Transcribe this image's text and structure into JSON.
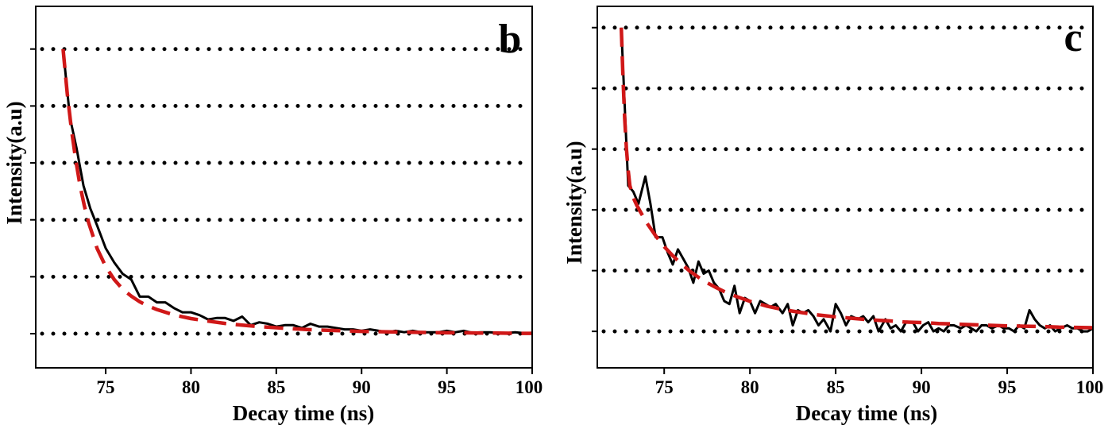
{
  "colors": {
    "data_line": "#000000",
    "fit_line": "#d01818",
    "grid": "#000000",
    "axis": "#000000"
  },
  "chart_data": [
    {
      "type": "line",
      "panel_label": "b",
      "xlabel": "Decay time (ns)",
      "ylabel": "Intensity(a.u)",
      "xlim": [
        70.9,
        100
      ],
      "ylim": [
        -0.12,
        1.15
      ],
      "x_ticks": [
        75,
        80,
        85,
        90,
        95,
        100
      ],
      "x_tick_labels": [
        "75",
        "80",
        "85",
        "90",
        "95",
        "100"
      ],
      "y_ticks": [
        0,
        0.2,
        0.4,
        0.6,
        0.8,
        1.0
      ],
      "y_tick_labels": [],
      "grid": "horizontal dotted",
      "series": [
        {
          "role": "measured",
          "style": "solid black",
          "x": [
            72.5,
            72.9,
            73.3,
            73.7,
            74.1,
            74.5,
            75.0,
            75.5,
            76.0,
            76.5,
            77.0,
            77.5,
            78.0,
            78.5,
            79.0,
            79.5,
            80.0,
            80.5,
            81.0,
            81.5,
            82.0,
            82.5,
            83.0,
            83.5,
            84.0,
            84.5,
            85.0,
            85.5,
            86.0,
            86.5,
            87.0,
            87.5,
            88.0,
            88.5,
            89.0,
            89.5,
            90.0,
            90.5,
            91.0,
            91.5,
            92.0,
            92.5,
            93.0,
            93.5,
            94.0,
            94.5,
            95.0,
            95.5,
            96.0,
            96.5,
            97.0,
            97.5,
            98.0,
            98.5,
            99.0,
            99.5,
            100.0
          ],
          "y": [
            1.0,
            0.76,
            0.65,
            0.52,
            0.44,
            0.38,
            0.3,
            0.25,
            0.21,
            0.19,
            0.13,
            0.13,
            0.11,
            0.11,
            0.09,
            0.075,
            0.075,
            0.065,
            0.05,
            0.055,
            0.055,
            0.045,
            0.06,
            0.03,
            0.04,
            0.035,
            0.025,
            0.03,
            0.03,
            0.02,
            0.035,
            0.025,
            0.025,
            0.02,
            0.015,
            0.015,
            0.01,
            0.015,
            0.01,
            0.005,
            0.01,
            0.005,
            0.01,
            0.005,
            0.005,
            0.005,
            0.01,
            0.005,
            0.01,
            0.003,
            0.005,
            0.005,
            0.003,
            0.002,
            0.005,
            0.002,
            0.003
          ]
        },
        {
          "role": "fit",
          "style": "dashed red",
          "x": [
            72.5,
            72.75,
            73.0,
            73.25,
            73.5,
            73.75,
            74.0,
            74.5,
            75.0,
            75.5,
            76.0,
            76.5,
            77.0,
            77.5,
            78.0,
            79.0,
            80.0,
            81.0,
            82.0,
            83.0,
            84.0,
            85.0,
            86.0,
            87.0,
            88.0,
            89.0,
            90.0,
            91.0,
            92.0,
            93.0,
            94.0,
            95.0,
            96.0,
            97.0,
            98.0,
            99.0,
            100.0
          ],
          "y": [
            1.0,
            0.843,
            0.714,
            0.608,
            0.52,
            0.449,
            0.39,
            0.299,
            0.236,
            0.19,
            0.156,
            0.132,
            0.112,
            0.097,
            0.085,
            0.066,
            0.053,
            0.044,
            0.036,
            0.03,
            0.025,
            0.021,
            0.017,
            0.014,
            0.012,
            0.01,
            0.008,
            0.007,
            0.006,
            0.005,
            0.004,
            0.003,
            0.003,
            0.002,
            0.002,
            0.001,
            0.001
          ]
        }
      ]
    },
    {
      "type": "line",
      "panel_label": "c",
      "xlabel": "Decay time (ns)",
      "ylabel": "Intensity(a.u)",
      "xlim": [
        71.1,
        100
      ],
      "ylim": [
        -0.12,
        1.07
      ],
      "x_ticks": [
        75,
        80,
        85,
        90,
        95,
        100
      ],
      "x_tick_labels": [
        "75",
        "80",
        "85",
        "90",
        "95",
        "100"
      ],
      "y_ticks": [
        0,
        0.2,
        0.4,
        0.6,
        0.8,
        1.0
      ],
      "y_tick_labels": [],
      "grid": "horizontal dotted",
      "series": [
        {
          "role": "measured",
          "style": "solid black",
          "x": [
            72.5,
            72.9,
            73.2,
            73.5,
            73.9,
            74.2,
            74.5,
            74.9,
            75.2,
            75.5,
            75.8,
            76.1,
            76.4,
            76.7,
            77.0,
            77.3,
            77.6,
            77.9,
            78.2,
            78.5,
            78.8,
            79.1,
            79.4,
            79.7,
            80.0,
            80.3,
            80.6,
            80.9,
            81.2,
            81.5,
            81.9,
            82.2,
            82.5,
            82.8,
            83.1,
            83.4,
            83.7,
            84.0,
            84.3,
            84.7,
            85.0,
            85.3,
            85.6,
            85.9,
            86.3,
            86.6,
            86.9,
            87.2,
            87.5,
            87.9,
            88.2,
            88.5,
            88.8,
            89.1,
            89.5,
            89.8,
            90.1,
            90.4,
            90.7,
            91.0,
            91.3,
            91.6,
            91.9,
            92.3,
            92.6,
            92.9,
            93.2,
            93.5,
            93.8,
            94.1,
            94.5,
            94.8,
            95.1,
            95.4,
            95.7,
            96.0,
            96.3,
            96.6,
            96.9,
            97.2,
            97.5,
            97.8,
            98.1,
            98.5,
            98.8,
            99.1,
            99.4,
            99.7,
            100.0
          ],
          "y": [
            1.0,
            0.48,
            0.46,
            0.42,
            0.51,
            0.42,
            0.31,
            0.31,
            0.26,
            0.22,
            0.27,
            0.24,
            0.21,
            0.16,
            0.23,
            0.19,
            0.2,
            0.16,
            0.14,
            0.1,
            0.09,
            0.15,
            0.06,
            0.11,
            0.1,
            0.06,
            0.1,
            0.09,
            0.08,
            0.09,
            0.06,
            0.09,
            0.02,
            0.07,
            0.06,
            0.07,
            0.05,
            0.02,
            0.04,
            0.0,
            0.09,
            0.06,
            0.02,
            0.05,
            0.04,
            0.05,
            0.03,
            0.05,
            0.0,
            0.04,
            0.01,
            0.02,
            0.0,
            0.03,
            0.03,
            0.0,
            0.02,
            0.03,
            0.0,
            0.01,
            0.0,
            0.02,
            0.02,
            0.01,
            0.02,
            0.01,
            0.0,
            0.02,
            0.02,
            0.01,
            0.02,
            0.01,
            0.01,
            0.0,
            0.02,
            0.01,
            0.07,
            0.04,
            0.02,
            0.01,
            0.02,
            0.0,
            0.01,
            0.02,
            0.01,
            0.01,
            0.0,
            0.0,
            0.01
          ]
        },
        {
          "role": "fit",
          "style": "dashed red",
          "x": [
            72.5,
            72.6,
            72.7,
            72.8,
            72.9,
            73.0,
            73.2,
            73.4,
            73.6,
            73.8,
            74.0,
            74.5,
            75.0,
            75.5,
            76.0,
            76.5,
            77.0,
            77.5,
            78.0,
            78.5,
            79.0,
            80.0,
            81.0,
            82.0,
            83.0,
            84.0,
            85.0,
            86.0,
            87.0,
            88.0,
            89.0,
            90.0,
            91.0,
            92.0,
            93.0,
            94.0,
            95.0,
            96.0,
            97.0,
            98.0,
            99.0,
            100.0
          ],
          "y": [
            1.0,
            0.83,
            0.7,
            0.6,
            0.53,
            0.48,
            0.44,
            0.415,
            0.395,
            0.375,
            0.356,
            0.315,
            0.279,
            0.249,
            0.222,
            0.198,
            0.178,
            0.16,
            0.145,
            0.131,
            0.119,
            0.099,
            0.083,
            0.071,
            0.062,
            0.054,
            0.048,
            0.043,
            0.038,
            0.035,
            0.031,
            0.029,
            0.026,
            0.024,
            0.022,
            0.02,
            0.018,
            0.017,
            0.016,
            0.014,
            0.013,
            0.012
          ]
        }
      ]
    }
  ]
}
